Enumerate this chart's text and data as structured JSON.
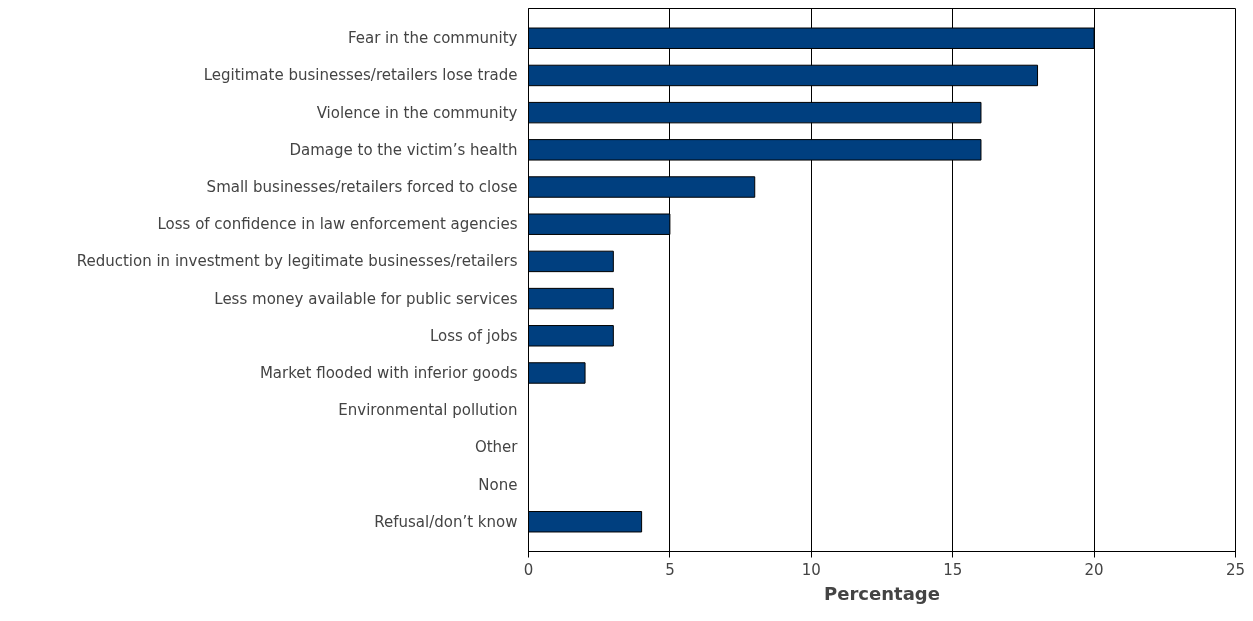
{
  "chart_data": {
    "type": "bar",
    "orientation": "horizontal",
    "xlabel": "Percentage",
    "categories": [
      "Fear in the community",
      "Legitimate businesses/retailers lose trade",
      "Violence in the community",
      "Damage to the victim’s health",
      "Small businesses/retailers forced to close",
      "Loss of confidence in law enforcement agencies",
      "Reduction in investment by legitimate businesses/retailers",
      "Less money available for public services",
      "Loss of jobs",
      "Market flooded with inferior goods",
      "Environmental pollution",
      "Other",
      "None",
      "Refusal/don’t know"
    ],
    "values": [
      20,
      18,
      16,
      16,
      8,
      5,
      3,
      3,
      3,
      2,
      0,
      0,
      0,
      4
    ],
    "color": "#003f7f",
    "xlim": [
      0,
      25
    ],
    "xticks": [
      0,
      5,
      10,
      15,
      20,
      25
    ],
    "grid": "x"
  }
}
